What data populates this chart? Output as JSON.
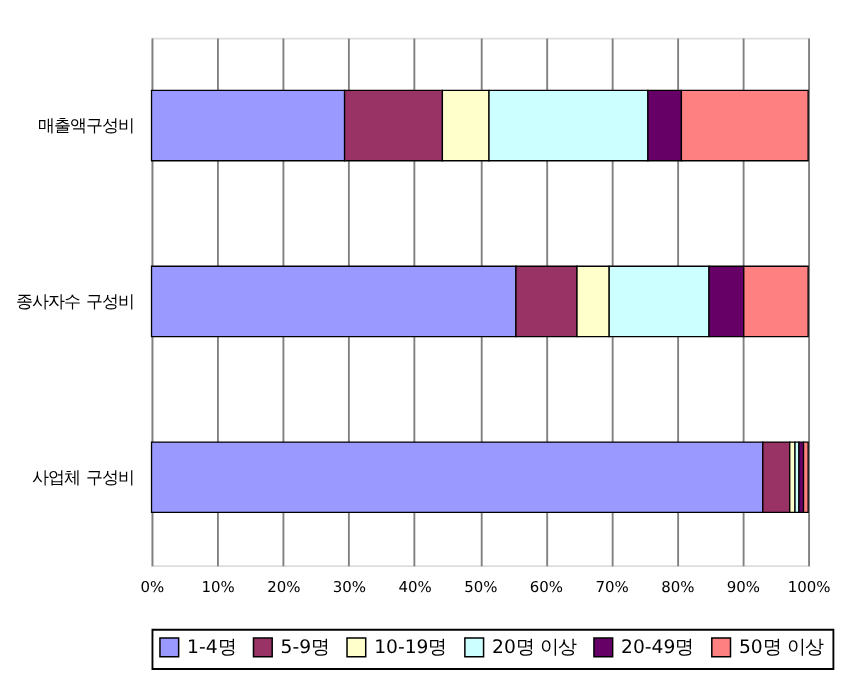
{
  "chart_data": {
    "type": "bar",
    "orientation": "horizontal",
    "stacked": true,
    "categories": [
      "매출액구성비",
      "종사자수 구성비",
      "사업체 구성비"
    ],
    "series": [
      {
        "name": "1-4명",
        "color": "#9999ff",
        "values": [
          29.4,
          55.5,
          93.1
        ]
      },
      {
        "name": "5-9명",
        "color": "#993366",
        "values": [
          14.9,
          9.3,
          4.1
        ]
      },
      {
        "name": "10-19명",
        "color": "#ffffcc",
        "values": [
          7.1,
          4.9,
          0.8
        ]
      },
      {
        "name": "20명 이상",
        "color": "#ccffff",
        "values": [
          24.2,
          15.2,
          0.6
        ]
      },
      {
        "name": "20-49명",
        "color": "#660066",
        "values": [
          5.1,
          5.3,
          0.7
        ]
      },
      {
        "name": "50명 이상",
        "color": "#ff8080",
        "values": [
          19.3,
          9.8,
          0.7
        ]
      }
    ],
    "xlim": [
      0,
      100
    ],
    "xticks": [
      {
        "value": 0,
        "label": "0%"
      },
      {
        "value": 10,
        "label": "10%"
      },
      {
        "value": 20,
        "label": "20%"
      },
      {
        "value": 30,
        "label": "30%"
      },
      {
        "value": 40,
        "label": "40%"
      },
      {
        "value": 50,
        "label": "50%"
      },
      {
        "value": 60,
        "label": "60%"
      },
      {
        "value": 70,
        "label": "70%"
      },
      {
        "value": 80,
        "label": "80%"
      },
      {
        "value": 90,
        "label": "90%"
      },
      {
        "value": 100,
        "label": "100%"
      }
    ],
    "grid": "x",
    "legend": "bottom"
  }
}
